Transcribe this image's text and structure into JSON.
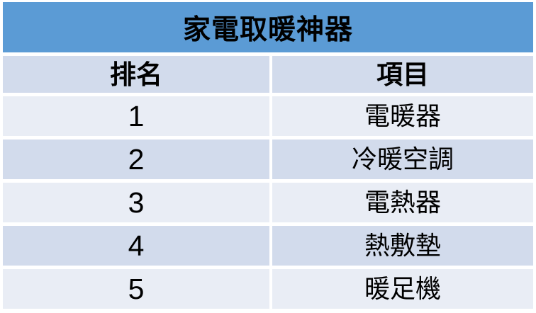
{
  "chart_data": {
    "type": "table",
    "title": "家電取暖神器",
    "columns": [
      "排名",
      "項目"
    ],
    "rows": [
      [
        "1",
        "電暖器"
      ],
      [
        "2",
        "冷暖空調"
      ],
      [
        "3",
        "電熱器"
      ],
      [
        "4",
        "熱敷墊"
      ],
      [
        "5",
        "暖足機"
      ]
    ]
  },
  "colors": {
    "title_bg": "#5b9bd5",
    "band_dark": "#d2dbec",
    "band_light": "#e9edf5",
    "gridline_gap": "#ffffff",
    "text": "#000000"
  }
}
